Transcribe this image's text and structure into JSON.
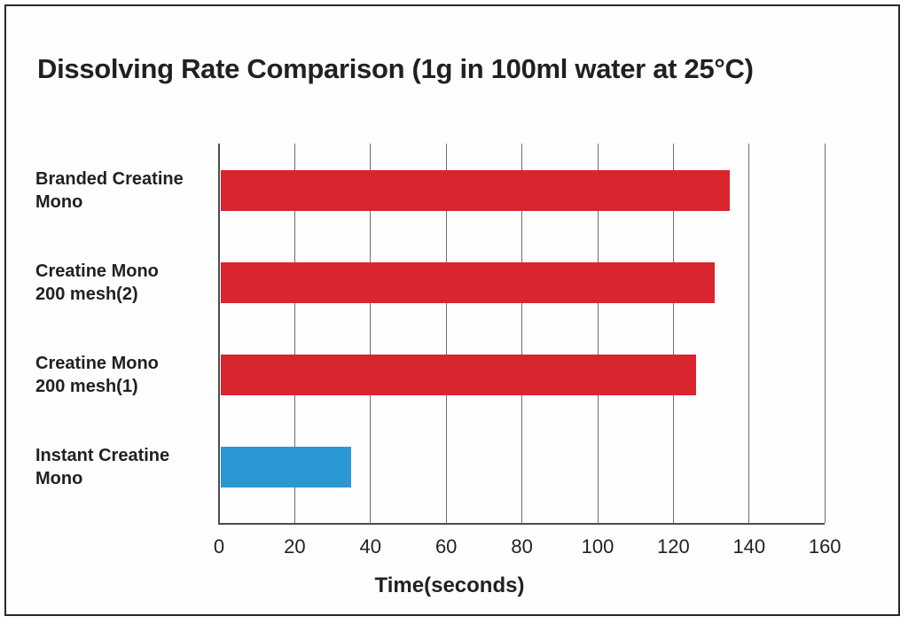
{
  "page": {
    "background": "#fefefe",
    "border_color": "#2b2627"
  },
  "chart_data": {
    "type": "bar",
    "orientation": "horizontal",
    "title": "Dissolving Rate Comparison (1g in 100ml water at 25°C)",
    "xlabel": "Time(seconds)",
    "ylabel": "",
    "xlim": [
      0,
      160
    ],
    "xticks": [
      0,
      20,
      40,
      60,
      80,
      100,
      120,
      140,
      160
    ],
    "grid": true,
    "legend": "none",
    "categories": [
      "Branded Creatine Mono",
      "Creatine Mono 200 mesh(2)",
      "Creatine Mono 200 mesh(1)",
      "Instant Creatine Mono"
    ],
    "category_label_lines": [
      [
        "Branded Creatine",
        "Mono"
      ],
      [
        "Creatine Mono",
        "200 mesh(2)"
      ],
      [
        "Creatine Mono",
        "200 mesh(1)"
      ],
      [
        "Instant Creatine",
        "Mono"
      ]
    ],
    "values": [
      135,
      131,
      126,
      35
    ],
    "bar_colors": [
      "#d9252d",
      "#d9252d",
      "#d9252d",
      "#2b97d3"
    ],
    "colors": {
      "red": "#d9252d",
      "blue": "#2b97d3",
      "text": "#231f20",
      "axis": "#4d4d4d",
      "grid": "#6e6e6e"
    }
  }
}
